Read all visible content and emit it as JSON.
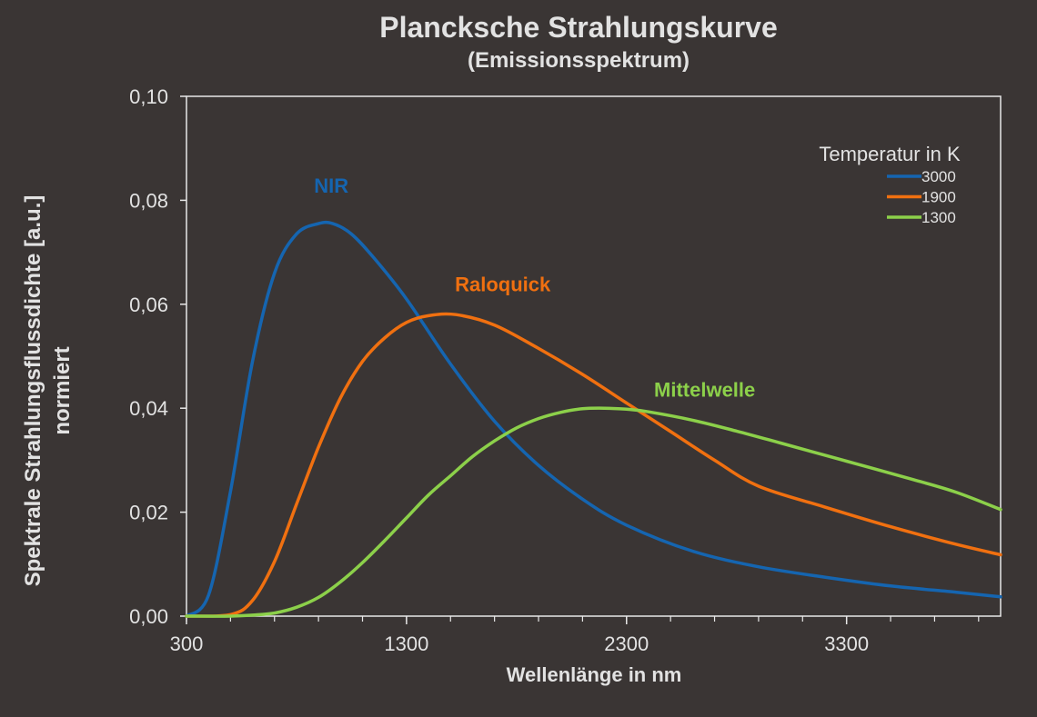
{
  "chart_data": {
    "type": "line",
    "title": "Plancksche Strahlungskurve",
    "subtitle": "(Emissionsspektrum)",
    "xlabel": "Wellenlänge in nm",
    "ylabel_line1": "Spektrale Strahlungsflussdichte  [a.u.]",
    "ylabel_line2": "normiert",
    "xlim": [
      300,
      4000
    ],
    "ylim": [
      0,
      0.1
    ],
    "x_ticks": [
      300,
      1300,
      2300,
      3300
    ],
    "x_tick_labels": [
      "300",
      "1300",
      "2300",
      "3300"
    ],
    "x_minor_step": 200,
    "y_ticks": [
      0,
      0.02,
      0.04,
      0.06,
      0.08,
      0.1
    ],
    "y_tick_labels": [
      "0,00",
      "0,02",
      "0,04",
      "0,06",
      "0,08",
      "0,10"
    ],
    "grid": false,
    "legend": {
      "title": "Temperatur in K",
      "position": "top-right"
    },
    "series": [
      {
        "name": "3000",
        "color": "#1565b0",
        "annotation": "NIR",
        "annotation_at": [
          880,
          0.0815
        ],
        "x": [
          300,
          400,
          500,
          600,
          700,
          800,
          900,
          965,
          1050,
          1150,
          1300,
          1500,
          1700,
          1900,
          2100,
          2300,
          2600,
          2900,
          3200,
          3500,
          3800,
          4000
        ],
        "y": [
          0,
          0.004,
          0.024,
          0.049,
          0.066,
          0.0735,
          0.0755,
          0.0755,
          0.0735,
          0.069,
          0.061,
          0.0485,
          0.0375,
          0.029,
          0.0225,
          0.0175,
          0.0125,
          0.0095,
          0.0075,
          0.0058,
          0.0046,
          0.0037
        ]
      },
      {
        "name": "1900",
        "color": "#f07010",
        "annotation": "Raloquick",
        "annotation_at": [
          1520,
          0.0625
        ],
        "x": [
          300,
          500,
          600,
          700,
          800,
          900,
          1000,
          1100,
          1200,
          1300,
          1400,
          1525,
          1700,
          1900,
          2100,
          2300,
          2500,
          2700,
          2900,
          3200,
          3500,
          3800,
          4000
        ],
        "y": [
          0,
          0.0003,
          0.003,
          0.0105,
          0.0215,
          0.0325,
          0.042,
          0.049,
          0.0535,
          0.0565,
          0.0578,
          0.058,
          0.056,
          0.0515,
          0.0465,
          0.041,
          0.0355,
          0.03,
          0.025,
          0.021,
          0.0172,
          0.0138,
          0.0118
        ]
      },
      {
        "name": "1300",
        "color": "#8cd04a",
        "annotation": "Mittelwelle",
        "annotation_at": [
          2425,
          0.0422
        ],
        "x": [
          300,
          500,
          600,
          700,
          800,
          900,
          1000,
          1100,
          1200,
          1300,
          1400,
          1500,
          1600,
          1700,
          1800,
          1900,
          2000,
          2100,
          2200,
          2300,
          2400,
          2600,
          2800,
          3000,
          3300,
          3600,
          3800,
          4000
        ],
        "y": [
          0,
          0,
          0.0002,
          0.0006,
          0.0017,
          0.0036,
          0.0066,
          0.0103,
          0.0145,
          0.0189,
          0.0233,
          0.027,
          0.0307,
          0.0337,
          0.0362,
          0.038,
          0.0392,
          0.0399,
          0.04,
          0.0398,
          0.0393,
          0.0377,
          0.0356,
          0.0333,
          0.0298,
          0.0263,
          0.0238,
          0.0205
        ]
      }
    ]
  }
}
